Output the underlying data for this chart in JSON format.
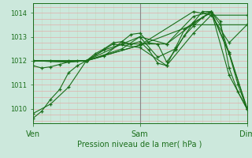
{
  "title": "",
  "xlabel": "Pression niveau de la mer( hPa )",
  "bg_color": "#cce8dc",
  "line_color": "#1a6e1a",
  "grid_h_color": "#e8a0a0",
  "grid_v_color": "#c0d8c0",
  "vline_color": "#888888",
  "ylim": [
    1009.4,
    1014.4
  ],
  "yticks": [
    1010,
    1011,
    1012,
    1013,
    1014
  ],
  "xtick_labels": [
    "Ven",
    "Sam",
    "Dim"
  ],
  "xtick_positions": [
    0,
    48,
    96
  ],
  "x_total": 96,
  "series": [
    [
      0,
      1009.6,
      4,
      1009.9,
      8,
      1010.4,
      12,
      1010.8,
      16,
      1011.5,
      20,
      1011.8,
      24,
      1012.0,
      28,
      1012.3,
      32,
      1012.5,
      36,
      1012.75,
      40,
      1012.8,
      44,
      1012.7,
      48,
      1012.8,
      52,
      1012.45,
      56,
      1011.9,
      60,
      1011.8,
      64,
      1012.55,
      68,
      1013.3,
      72,
      1013.6,
      76,
      1014.05,
      80,
      1014.05,
      84,
      1013.5,
      88,
      1012.3,
      92,
      1011.0,
      96,
      1010.0
    ],
    [
      0,
      1009.8,
      8,
      1010.2,
      16,
      1010.9,
      24,
      1012.0,
      32,
      1012.45,
      40,
      1012.7,
      48,
      1013.0,
      56,
      1012.15,
      64,
      1012.5,
      72,
      1013.6,
      80,
      1014.0,
      88,
      1012.3,
      96,
      1010.05
    ],
    [
      0,
      1011.8,
      4,
      1011.7,
      8,
      1011.75,
      12,
      1011.85,
      16,
      1011.95,
      20,
      1012.0,
      24,
      1012.0,
      32,
      1012.2,
      40,
      1012.8,
      44,
      1013.1,
      48,
      1013.15,
      52,
      1012.75,
      56,
      1012.7,
      60,
      1011.95,
      64,
      1012.45,
      68,
      1013.05,
      72,
      1013.45,
      76,
      1013.8,
      80,
      1014.05,
      84,
      1013.65,
      88,
      1011.7,
      92,
      1010.7,
      96,
      1010.0
    ],
    [
      0,
      1012.0,
      8,
      1012.0,
      16,
      1012.0,
      24,
      1012.0,
      40,
      1012.7,
      48,
      1012.7,
      60,
      1012.7,
      72,
      1013.55,
      80,
      1014.05,
      88,
      1011.4,
      96,
      1010.0
    ],
    [
      0,
      1012.0,
      16,
      1011.95,
      24,
      1012.0,
      36,
      1012.7,
      48,
      1012.55,
      60,
      1011.8,
      72,
      1013.15,
      80,
      1013.9,
      88,
      1012.75,
      96,
      1013.5
    ],
    [
      0,
      1012.0,
      24,
      1012.0,
      48,
      1012.65,
      72,
      1013.5,
      96,
      1013.5
    ],
    [
      0,
      1012.0,
      24,
      1012.0,
      48,
      1012.65,
      72,
      1014.05,
      80,
      1013.9,
      96,
      1013.9
    ],
    [
      0,
      1012.0,
      16,
      1011.95,
      24,
      1012.0,
      40,
      1012.5,
      48,
      1013.0,
      60,
      1012.7,
      72,
      1013.85,
      80,
      1014.05,
      88,
      1012.35,
      96,
      1010.0
    ]
  ]
}
